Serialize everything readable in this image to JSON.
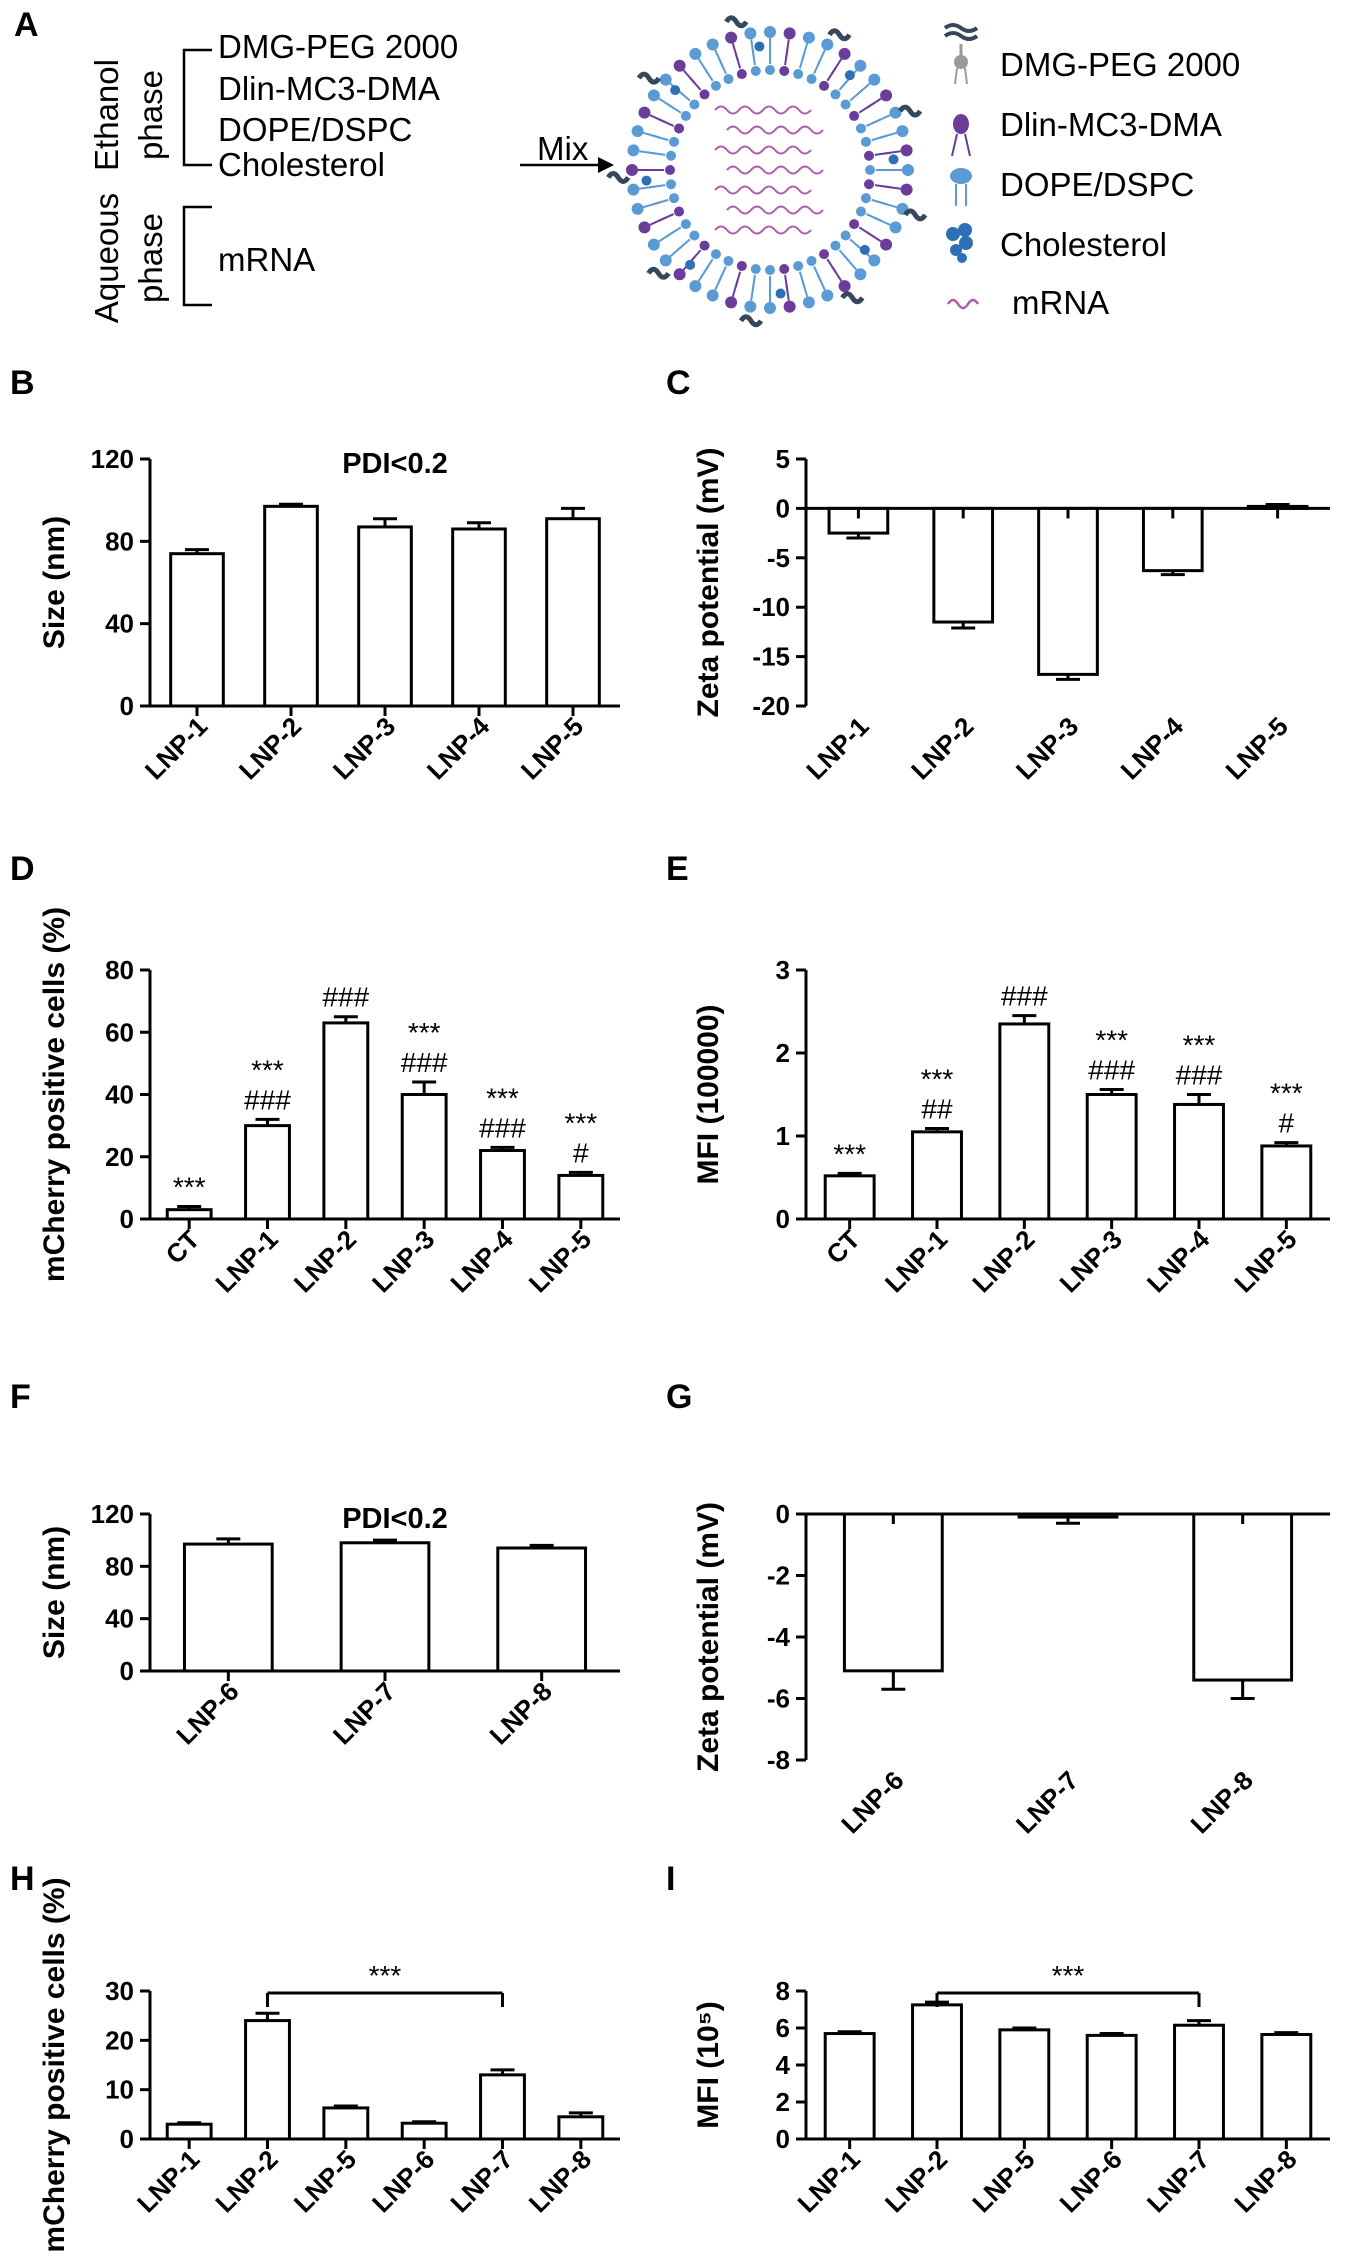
{
  "schematic": {
    "panel": "A",
    "ethanol_label": "Ethanol",
    "ethanol_phase_label": "phase",
    "ethanol_components": [
      "DMG-PEG 2000",
      "Dlin-MC3-DMA",
      "DOPE/DSPC",
      "Cholesterol"
    ],
    "aqueous_label": "Aqueous",
    "aqueous_phase_label": "phase",
    "aqueous_components": [
      "mRNA"
    ],
    "mix_label": "Mix",
    "legend": [
      {
        "label": "DMG-PEG 2000",
        "icon": "peg-lipid-icon",
        "color": "#9a9a9a"
      },
      {
        "label": "Dlin-MC3-DMA",
        "icon": "ionizable-lipid-icon",
        "color": "#6a3d9a"
      },
      {
        "label": "DOPE/DSPC",
        "icon": "phospholipid-icon",
        "color": "#5b9bd5"
      },
      {
        "label": "Cholesterol",
        "icon": "cholesterol-icon",
        "color": "#2f6fb5"
      },
      {
        "label": "mRNA",
        "icon": "mrna-icon",
        "color": "#b05bb0"
      }
    ]
  },
  "chart_data": [
    {
      "panel": "B",
      "type": "bar",
      "title": "PDI<0.2",
      "categories": [
        "LNP-1",
        "LNP-2",
        "LNP-3",
        "LNP-4",
        "LNP-5"
      ],
      "values": [
        74,
        97,
        87,
        86,
        91
      ],
      "errors": [
        2,
        1,
        4,
        3,
        5
      ],
      "ylabel": "Size (nm)",
      "ylim": [
        0,
        120
      ],
      "yticks": [
        "0",
        "40",
        "80",
        "120"
      ]
    },
    {
      "panel": "C",
      "type": "bar",
      "title": "",
      "categories": [
        "LNP-1",
        "LNP-2",
        "LNP-3",
        "LNP-4",
        "LNP-5"
      ],
      "values": [
        -2.5,
        -11.5,
        -16.8,
        -6.3,
        0.2
      ],
      "errors": [
        0.5,
        0.6,
        0.5,
        0.4,
        0.2
      ],
      "ylabel": "Zeta potential (mV)",
      "ylim": [
        -20,
        5
      ],
      "yticks": [
        "5",
        "0",
        "-5",
        "-10",
        "-15",
        "-20"
      ]
    },
    {
      "panel": "D",
      "type": "bar",
      "title": "",
      "categories": [
        "CT",
        "LNP-1",
        "LNP-2",
        "LNP-3",
        "LNP-4",
        "LNP-5"
      ],
      "values": [
        3,
        30,
        63,
        40,
        22,
        14
      ],
      "errors": [
        1,
        2,
        2,
        4,
        1,
        1
      ],
      "annotations": [
        [
          "***"
        ],
        [
          "***",
          "###"
        ],
        [
          "###"
        ],
        [
          "***",
          "###"
        ],
        [
          "***",
          "###"
        ],
        [
          "***",
          "#"
        ]
      ],
      "ylabel": "mCherry positive cells (%)",
      "ylim": [
        0,
        80
      ],
      "yticks": [
        "0",
        "20",
        "40",
        "60",
        "80"
      ]
    },
    {
      "panel": "E",
      "type": "bar",
      "title": "",
      "categories": [
        "CT",
        "LNP-1",
        "LNP-2",
        "LNP-3",
        "LNP-4",
        "LNP-5"
      ],
      "values": [
        0.52,
        1.05,
        2.35,
        1.5,
        1.38,
        0.88
      ],
      "errors": [
        0.03,
        0.04,
        0.1,
        0.06,
        0.12,
        0.04
      ],
      "annotations": [
        [
          "***"
        ],
        [
          "***",
          "##"
        ],
        [
          "###"
        ],
        [
          "***",
          "###"
        ],
        [
          "***",
          "###"
        ],
        [
          "***",
          "#"
        ]
      ],
      "ylabel": "MFI (100000)",
      "ylim": [
        0,
        3
      ],
      "yticks": [
        "0",
        "1",
        "2",
        "3"
      ]
    },
    {
      "panel": "F",
      "type": "bar",
      "title": "PDI<0.2",
      "categories": [
        "LNP-6",
        "LNP-7",
        "LNP-8"
      ],
      "values": [
        97,
        98,
        94
      ],
      "errors": [
        4,
        2,
        2
      ],
      "ylabel": "Size (nm)",
      "ylim": [
        0,
        120
      ],
      "yticks": [
        "0",
        "40",
        "80",
        "120"
      ]
    },
    {
      "panel": "G",
      "type": "bar",
      "title": "",
      "categories": [
        "LNP-6",
        "LNP-7",
        "LNP-8"
      ],
      "values": [
        -5.1,
        -0.1,
        -5.4
      ],
      "errors": [
        0.6,
        0.2,
        0.6
      ],
      "ylabel": "Zeta potential (mV)",
      "ylim": [
        -8,
        0
      ],
      "yticks": [
        "0",
        "-2",
        "-4",
        "-6",
        "-8"
      ]
    },
    {
      "panel": "H",
      "type": "bar",
      "title": "",
      "categories": [
        "LNP-1",
        "LNP-2",
        "LNP-5",
        "LNP-6",
        "LNP-7",
        "LNP-8"
      ],
      "values": [
        3,
        24,
        6.3,
        3.2,
        13,
        4.5
      ],
      "errors": [
        0.3,
        1.5,
        0.4,
        0.3,
        1.0,
        0.8
      ],
      "bracket": {
        "from": 1,
        "to": 4,
        "label": "***"
      },
      "ylabel": "mCherry positive cells (%)",
      "ylim": [
        0,
        30
      ],
      "yticks": [
        "0",
        "10",
        "20",
        "30"
      ]
    },
    {
      "panel": "I",
      "type": "bar",
      "title": "",
      "categories": [
        "LNP-1",
        "LNP-2",
        "LNP-5",
        "LNP-6",
        "LNP-7",
        "LNP-8"
      ],
      "values": [
        5.7,
        7.25,
        5.9,
        5.6,
        6.15,
        5.65
      ],
      "errors": [
        0.1,
        0.15,
        0.1,
        0.1,
        0.25,
        0.1
      ],
      "bracket": {
        "from": 1,
        "to": 4,
        "label": "***"
      },
      "ylabel": "MFI (10⁵)",
      "ylim": [
        0,
        8
      ],
      "yticks": [
        "0",
        "2",
        "4",
        "6",
        "8"
      ]
    }
  ]
}
